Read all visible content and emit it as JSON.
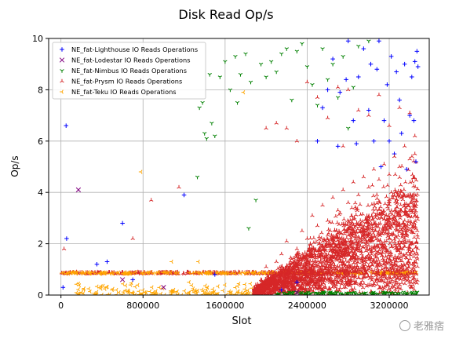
{
  "chart_data": {
    "type": "scatter",
    "title": "Disk Read Op/s",
    "xlabel": "Slot",
    "ylabel": "Op/s",
    "xlim": [
      -120000,
      3590000
    ],
    "ylim": [
      0,
      10
    ],
    "xticks": [
      0,
      800000,
      1600000,
      2400000,
      3200000
    ],
    "xtick_labels": [
      "0",
      "800000",
      "1600000",
      "2400000",
      "3200000"
    ],
    "yticks": [
      0,
      2,
      4,
      6,
      8,
      10
    ],
    "ytick_labels": [
      "0",
      "2",
      "4",
      "6",
      "8",
      "10"
    ],
    "grid": true,
    "legend_position": "top-left",
    "series": [
      {
        "name": "NE_fat-Lighthouse IO Reads Operations",
        "marker": "+",
        "color": "#0000ff",
        "points": [
          [
            50000,
            6.6
          ],
          [
            55000,
            2.2
          ],
          [
            20000,
            0.3
          ],
          [
            350000,
            1.2
          ],
          [
            450000,
            1.3
          ],
          [
            600000,
            2.8
          ],
          [
            700000,
            0.6
          ],
          [
            1200000,
            3.9
          ],
          [
            1500000,
            0.8
          ],
          [
            2150000,
            0.2
          ],
          [
            2300000,
            0.5
          ],
          [
            2500000,
            6.0
          ],
          [
            2550000,
            7.3
          ],
          [
            2600000,
            8.0
          ],
          [
            2650000,
            9.2
          ],
          [
            2700000,
            5.8
          ],
          [
            2720000,
            7.9
          ],
          [
            2780000,
            8.4
          ],
          [
            2800000,
            9.9
          ],
          [
            2850000,
            6.8
          ],
          [
            2880000,
            5.9
          ],
          [
            2900000,
            8.5
          ],
          [
            2950000,
            9.6
          ],
          [
            3000000,
            7.2
          ],
          [
            3020000,
            9.0
          ],
          [
            3050000,
            6.0
          ],
          [
            3080000,
            8.8
          ],
          [
            3100000,
            9.9
          ],
          [
            3120000,
            5.0
          ],
          [
            3150000,
            6.8
          ],
          [
            3180000,
            8.2
          ],
          [
            3200000,
            6.0
          ],
          [
            3220000,
            9.3
          ],
          [
            3250000,
            5.5
          ],
          [
            3270000,
            8.7
          ],
          [
            3300000,
            7.6
          ],
          [
            3320000,
            6.3
          ],
          [
            3350000,
            9.0
          ],
          [
            3370000,
            4.9
          ],
          [
            3400000,
            7.0
          ],
          [
            3420000,
            8.5
          ],
          [
            3440000,
            6.8
          ],
          [
            3450000,
            9.1
          ],
          [
            3460000,
            5.2
          ],
          [
            3470000,
            9.5
          ],
          [
            3480000,
            8.9
          ]
        ]
      },
      {
        "name": "NE_fat-Lodestar IO Reads Operations",
        "marker": "x",
        "color": "#800080",
        "points": [
          [
            170000,
            4.1
          ],
          [
            600000,
            0.6
          ],
          [
            1000000,
            0.3
          ],
          [
            2300000,
            0.1
          ]
        ]
      },
      {
        "name": "NE_fat-Nimbus IO Reads Operations",
        "marker": "tri_down",
        "color": "#008000",
        "points": [
          [
            1350000,
            7.3
          ],
          [
            1380000,
            7.5
          ],
          [
            1400000,
            6.3
          ],
          [
            1420000,
            6.1
          ],
          [
            1450000,
            8.6
          ],
          [
            1470000,
            6.7
          ],
          [
            1500000,
            6.2
          ],
          [
            1550000,
            8.5
          ],
          [
            1600000,
            9.1
          ],
          [
            1650000,
            8.0
          ],
          [
            1700000,
            9.3
          ],
          [
            1720000,
            7.5
          ],
          [
            1750000,
            8.6
          ],
          [
            1800000,
            9.4
          ],
          [
            1850000,
            8.3
          ],
          [
            1900000,
            3.7
          ],
          [
            1950000,
            9.0
          ],
          [
            2000000,
            8.5
          ],
          [
            2050000,
            9.1
          ],
          [
            2100000,
            8.7
          ],
          [
            2150000,
            9.4
          ],
          [
            2200000,
            9.6
          ],
          [
            2250000,
            7.6
          ],
          [
            2300000,
            9.5
          ],
          [
            2350000,
            9.8
          ],
          [
            2400000,
            8.9
          ],
          [
            2450000,
            8.2
          ],
          [
            2500000,
            7.4
          ],
          [
            2550000,
            9.6
          ],
          [
            2600000,
            8.4
          ],
          [
            2650000,
            9.0
          ],
          [
            2700000,
            7.7
          ],
          [
            2750000,
            9.3
          ],
          [
            2800000,
            6.5
          ],
          [
            2850000,
            8.1
          ],
          [
            2900000,
            9.7
          ],
          [
            3000000,
            9.9
          ],
          [
            1330000,
            4.6
          ],
          [
            1830000,
            2.6
          ]
        ]
      },
      {
        "name": "NE_fat-Prysm IO Reads Operations",
        "marker": "tri_up",
        "color": "#d62728",
        "points": [
          [
            30000,
            1.8
          ],
          [
            700000,
            2.2
          ],
          [
            750000,
            0.9
          ],
          [
            880000,
            3.7
          ],
          [
            1150000,
            4.2
          ],
          [
            1900000,
            0.4
          ],
          [
            1950000,
            0.6
          ],
          [
            2000000,
            1.1
          ],
          [
            2050000,
            0.9
          ],
          [
            2100000,
            1.3
          ],
          [
            2150000,
            1.6
          ],
          [
            2200000,
            2.1
          ],
          [
            2250000,
            1.4
          ],
          [
            2300000,
            1.8
          ],
          [
            2350000,
            2.5
          ],
          [
            2400000,
            2.2
          ],
          [
            2450000,
            3.1
          ],
          [
            2500000,
            2.7
          ],
          [
            2550000,
            3.5
          ],
          [
            2600000,
            2.9
          ],
          [
            2650000,
            3.8
          ],
          [
            2700000,
            3.3
          ],
          [
            2750000,
            4.1
          ],
          [
            2800000,
            3.6
          ],
          [
            2850000,
            4.4
          ],
          [
            2900000,
            3.9
          ],
          [
            2950000,
            4.6
          ],
          [
            3000000,
            4.2
          ],
          [
            3050000,
            4.9
          ],
          [
            3100000,
            4.5
          ],
          [
            3150000,
            5.1
          ],
          [
            3200000,
            4.7
          ],
          [
            3250000,
            5.4
          ],
          [
            3300000,
            5.0
          ],
          [
            3350000,
            5.8
          ],
          [
            3400000,
            5.3
          ],
          [
            3450000,
            6.2
          ],
          [
            2200000,
            6.5
          ],
          [
            2300000,
            6.0
          ],
          [
            2400000,
            8.3
          ],
          [
            2500000,
            7.7
          ],
          [
            2600000,
            6.9
          ],
          [
            2700000,
            8.1
          ],
          [
            2750000,
            5.8
          ],
          [
            2800000,
            8.0
          ],
          [
            2900000,
            7.2
          ],
          [
            3000000,
            7.0
          ],
          [
            3100000,
            7.8
          ],
          [
            3200000,
            6.6
          ],
          [
            3300000,
            7.3
          ],
          [
            3400000,
            7.1
          ],
          [
            3450000,
            5.5
          ],
          [
            2000000,
            6.5
          ],
          [
            2100000,
            6.7
          ]
        ]
      },
      {
        "name": "NE_fat-Teku IO Reads Operations",
        "marker": "tri_left",
        "color": "#ffa500",
        "points": [
          [
            780000,
            4.8
          ],
          [
            1080000,
            1.3
          ],
          [
            1340000,
            1.3
          ],
          [
            1780000,
            7.9
          ],
          [
            200000,
            0.1
          ],
          [
            500000,
            0.2
          ],
          [
            900000,
            0.1
          ],
          [
            1100000,
            0.2
          ],
          [
            1250000,
            0.5
          ],
          [
            1300000,
            0.1
          ]
        ]
      }
    ]
  }
}
